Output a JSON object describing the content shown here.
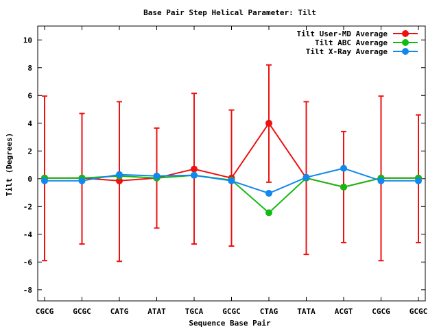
{
  "chart_data": {
    "type": "line",
    "title": "Base Pair Step Helical Parameter: Tilt",
    "xlabel": "Sequence Base Pair",
    "ylabel": "Tilt (Degrees)",
    "categories": [
      "CGCG",
      "GCGC",
      "CATG",
      "ATAT",
      "TGCA",
      "GCGC",
      "CTAG",
      "TATA",
      "ACGT",
      "CGCG",
      "GCGC"
    ],
    "ylim": [
      -8.8,
      11
    ],
    "yticks": [
      -8,
      -6,
      -4,
      -2,
      0,
      2,
      4,
      6,
      8,
      10
    ],
    "grid": false,
    "legend_position": "top-right",
    "series": [
      {
        "name": "Tilt User-MD Average",
        "color": "#ee1111",
        "values": [
          0.05,
          0.05,
          -0.15,
          0.05,
          0.7,
          0.05,
          4.0,
          0.05,
          -0.6,
          0.05,
          0.05
        ],
        "error_low": [
          -5.9,
          -4.7,
          -5.95,
          -3.55,
          -4.7,
          -4.85,
          -0.25,
          -5.45,
          -4.6,
          -5.9,
          -4.6
        ],
        "error_high": [
          5.95,
          4.7,
          5.55,
          3.65,
          6.15,
          4.95,
          8.2,
          5.55,
          3.4,
          5.95,
          4.6
        ]
      },
      {
        "name": "Tilt ABC Average",
        "color": "#11bb11",
        "values": [
          0.05,
          0.05,
          0.2,
          0.05,
          0.25,
          -0.1,
          -2.45,
          0.05,
          -0.6,
          0.05,
          0.05
        ]
      },
      {
        "name": "Tilt X-Ray Average",
        "color": "#1188ee",
        "values": [
          -0.15,
          -0.15,
          0.3,
          0.2,
          0.25,
          -0.15,
          -1.05,
          0.1,
          0.75,
          -0.15,
          -0.15
        ]
      }
    ]
  }
}
